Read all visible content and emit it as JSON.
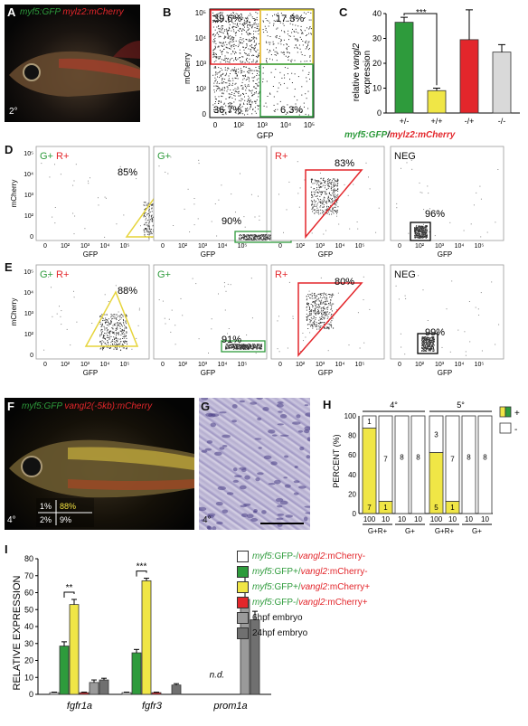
{
  "panels": {
    "A": {
      "letter": "A",
      "label_green": "myf5:GFP",
      "label_red": "mylz2:mCherry",
      "stage": "2°"
    },
    "B": {
      "letter": "B",
      "ylabel": "mCherry",
      "xlabel": "GFP",
      "quadrants": {
        "ul": "39.6%",
        "ur": "17.3%",
        "ll": "36.7%",
        "lr": "6.3%"
      },
      "xticks": [
        "0",
        "10²",
        "10³",
        "10⁴",
        "10⁵"
      ],
      "yticks": [
        "10⁵",
        "10⁴",
        "10³",
        "10²",
        "0"
      ]
    },
    "C": {
      "letter": "C",
      "ylabel_pre": "relative ",
      "ylabel_gene": "vangl2",
      "ylabel_post": "expression",
      "yticks": [
        "0",
        "10",
        "20",
        "30",
        "40"
      ],
      "sig": "***",
      "genotypes": [
        "+/-",
        "+/+",
        "-/+",
        "-/-"
      ],
      "legend_green": "myf5:GFP",
      "legend_slash": "/",
      "legend_red": "mylz2:mCherry"
    },
    "D": {
      "letter": "D",
      "facs": [
        {
          "tag_g": "G+",
          "tag_r": "R+",
          "pct": "85%"
        },
        {
          "tag_g": "G+",
          "tag_r": "",
          "pct": "90%"
        },
        {
          "tag_g": "",
          "tag_r": "R+",
          "pct": "83%"
        },
        {
          "tag_n": "NEG",
          "pct": "96%"
        }
      ]
    },
    "E": {
      "letter": "E",
      "facs": [
        {
          "tag_g": "G+",
          "tag_r": "R+",
          "pct": "88%"
        },
        {
          "tag_g": "G+",
          "tag_r": "",
          "pct": "91%"
        },
        {
          "tag_g": "",
          "tag_r": "R+",
          "pct": "80%"
        },
        {
          "tag_n": "NEG",
          "pct": "99%"
        }
      ]
    },
    "facs_axes": {
      "xlabel": "GFP",
      "ylabel": "mCherry",
      "xticks": [
        "0",
        "10²",
        "10³",
        "10⁴",
        "10⁵"
      ],
      "yticks": [
        "10⁵",
        "10⁴",
        "10³",
        "10²",
        "0"
      ]
    },
    "F": {
      "letter": "F",
      "label_green": "myf5:GFP",
      "label_red": "vangl2(-5kb):mCherry",
      "stage": "4°",
      "q_ul": "1%",
      "q_ur": "88%",
      "q_ll": "2%",
      "q_lr": "9%"
    },
    "G": {
      "letter": "G",
      "stage": "4°"
    },
    "H": {
      "letter": "H",
      "ylabel": "PERCENT (%)",
      "yticks": [
        "0",
        "20",
        "40",
        "60",
        "80",
        "100"
      ],
      "groups": [
        "4°",
        "5°"
      ],
      "legend": [
        "+",
        "-"
      ],
      "xcats": [
        "G+R+",
        "G+",
        "G+R+",
        "G+"
      ],
      "ncounts": [
        "100",
        "10",
        "10",
        "10",
        "100",
        "10",
        "10",
        "10"
      ]
    },
    "I": {
      "letter": "I",
      "ylabel": "RELATIVE EXPRESSION",
      "yticks": [
        "0",
        "10",
        "20",
        "30",
        "40",
        "50",
        "60",
        "70",
        "80"
      ],
      "genes": [
        "fgfr1a",
        "fgfr3",
        "prom1a"
      ],
      "sig1": "**",
      "sig2": "***",
      "nd": "n.d.",
      "legend": [
        {
          "g": "myf5",
          "a": ":GFP-/",
          "v": "vangl2",
          "b": ":mCherry-"
        },
        {
          "g": "myf5",
          "a": ":GFP+/",
          "v": "vangl2",
          "b": ":mCherry-"
        },
        {
          "g": "myf5",
          "a": ":GFP+/",
          "v": "vangl2",
          "b": ":mCherry+"
        },
        {
          "g": "myf5",
          "a": ":GFP-/",
          "v": "vangl2",
          "b": ":mCherry+"
        },
        {
          "t": "6hpf embryo"
        },
        {
          "t": "24hpf embryo"
        }
      ]
    }
  },
  "colors": {
    "green": "#2e9b3c",
    "red": "#e3262b",
    "yellow": "#f0e646",
    "gray_light": "#d9d9d9",
    "gray": "#9a9a9a",
    "gray_dark": "#707070"
  },
  "chart_data": [
    {
      "type": "bar",
      "panel": "C",
      "categories": [
        "+/-",
        "+/+",
        "-/+",
        "-/-"
      ],
      "values": [
        36.5,
        9,
        29.5,
        24.5
      ],
      "errors": [
        2,
        1,
        12,
        3
      ],
      "ylabel": "relative vangl2 expression",
      "ylim": [
        0,
        40
      ]
    },
    {
      "type": "bar",
      "panel": "H",
      "stacked": true,
      "ylabel": "PERCENT (%)",
      "ylim": [
        0,
        100
      ],
      "categories": [
        "G+R+ 100",
        "G+R+ 10",
        "G+ 10",
        "G+ 10",
        "G+R+ 100",
        "G+R+ 10",
        "G+ 10",
        "G+ 10"
      ],
      "series": [
        {
          "name": "+",
          "values": [
            87.5,
            12.5,
            0,
            0,
            62.5,
            12.5,
            0,
            0
          ],
          "counts": [
            7,
            1,
            0,
            0,
            5,
            1,
            0,
            0
          ]
        },
        {
          "name": "-",
          "values": [
            12.5,
            87.5,
            100,
            100,
            37.5,
            87.5,
            100,
            100
          ],
          "counts": [
            1,
            7,
            8,
            8,
            3,
            7,
            8,
            8
          ]
        }
      ]
    },
    {
      "type": "bar",
      "panel": "I",
      "categories": [
        "fgfr1a",
        "fgfr3",
        "prom1a"
      ],
      "ylabel": "RELATIVE EXPRESSION",
      "ylim": [
        0,
        80
      ],
      "series": [
        {
          "name": "myf5:GFP-/vangl2:mCherry-",
          "values": [
            1,
            1,
            0
          ],
          "errors": [
            0.3,
            0.3,
            0
          ]
        },
        {
          "name": "myf5:GFP+/vangl2:mCherry-",
          "values": [
            28.5,
            24.5,
            0
          ],
          "errors": [
            2.5,
            2,
            0
          ]
        },
        {
          "name": "myf5:GFP+/vangl2:mCherry+",
          "values": [
            53,
            67,
            0
          ],
          "errors": [
            3,
            1.5,
            0
          ]
        },
        {
          "name": "myf5:GFP-/vangl2:mCherry+",
          "values": [
            1,
            1,
            0
          ],
          "errors": [
            0.3,
            0.3,
            0
          ]
        },
        {
          "name": "6hpf embryo",
          "values": [
            7,
            0,
            56
          ],
          "errors": [
            1.5,
            0,
            16
          ]
        },
        {
          "name": "24hpf embryo",
          "values": [
            8.5,
            5.5,
            44
          ],
          "errors": [
            1,
            0.8,
            5
          ]
        }
      ]
    }
  ]
}
